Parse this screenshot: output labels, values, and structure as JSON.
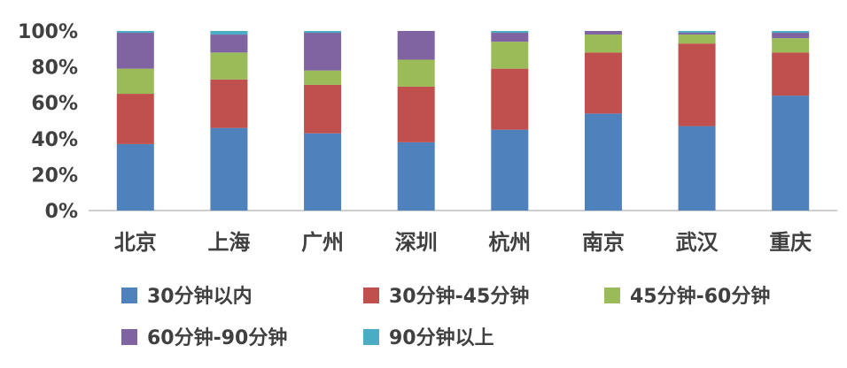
{
  "chart_data": {
    "type": "bar",
    "stacked": true,
    "percent_stacked": true,
    "categories": [
      "北京",
      "上海",
      "广州",
      "深圳",
      "杭州",
      "南京",
      "武汉",
      "重庆"
    ],
    "series": [
      {
        "name": "30分钟以内",
        "color": "#4F81BD",
        "values": [
          37,
          46,
          43,
          38,
          45,
          54,
          47,
          64
        ]
      },
      {
        "name": "30分钟-45分钟",
        "color": "#C0504D",
        "values": [
          28,
          27,
          27,
          31,
          34,
          34,
          46,
          24
        ]
      },
      {
        "name": "45分钟-60分钟",
        "color": "#9BBB59",
        "values": [
          14,
          15,
          8,
          15,
          15,
          10,
          5,
          8
        ]
      },
      {
        "name": "60分钟-90分钟",
        "color": "#8064A2",
        "values": [
          20,
          10,
          21,
          16,
          5,
          2,
          1,
          3
        ]
      },
      {
        "name": "90分钟以上",
        "color": "#4BACC6",
        "values": [
          1,
          2,
          1,
          0,
          1,
          0,
          1,
          1
        ]
      }
    ],
    "yticks": [
      "0%",
      "20%",
      "40%",
      "60%",
      "80%",
      "100%"
    ],
    "ylim": [
      0,
      100
    ],
    "grid": false,
    "legend_position": "bottom"
  }
}
